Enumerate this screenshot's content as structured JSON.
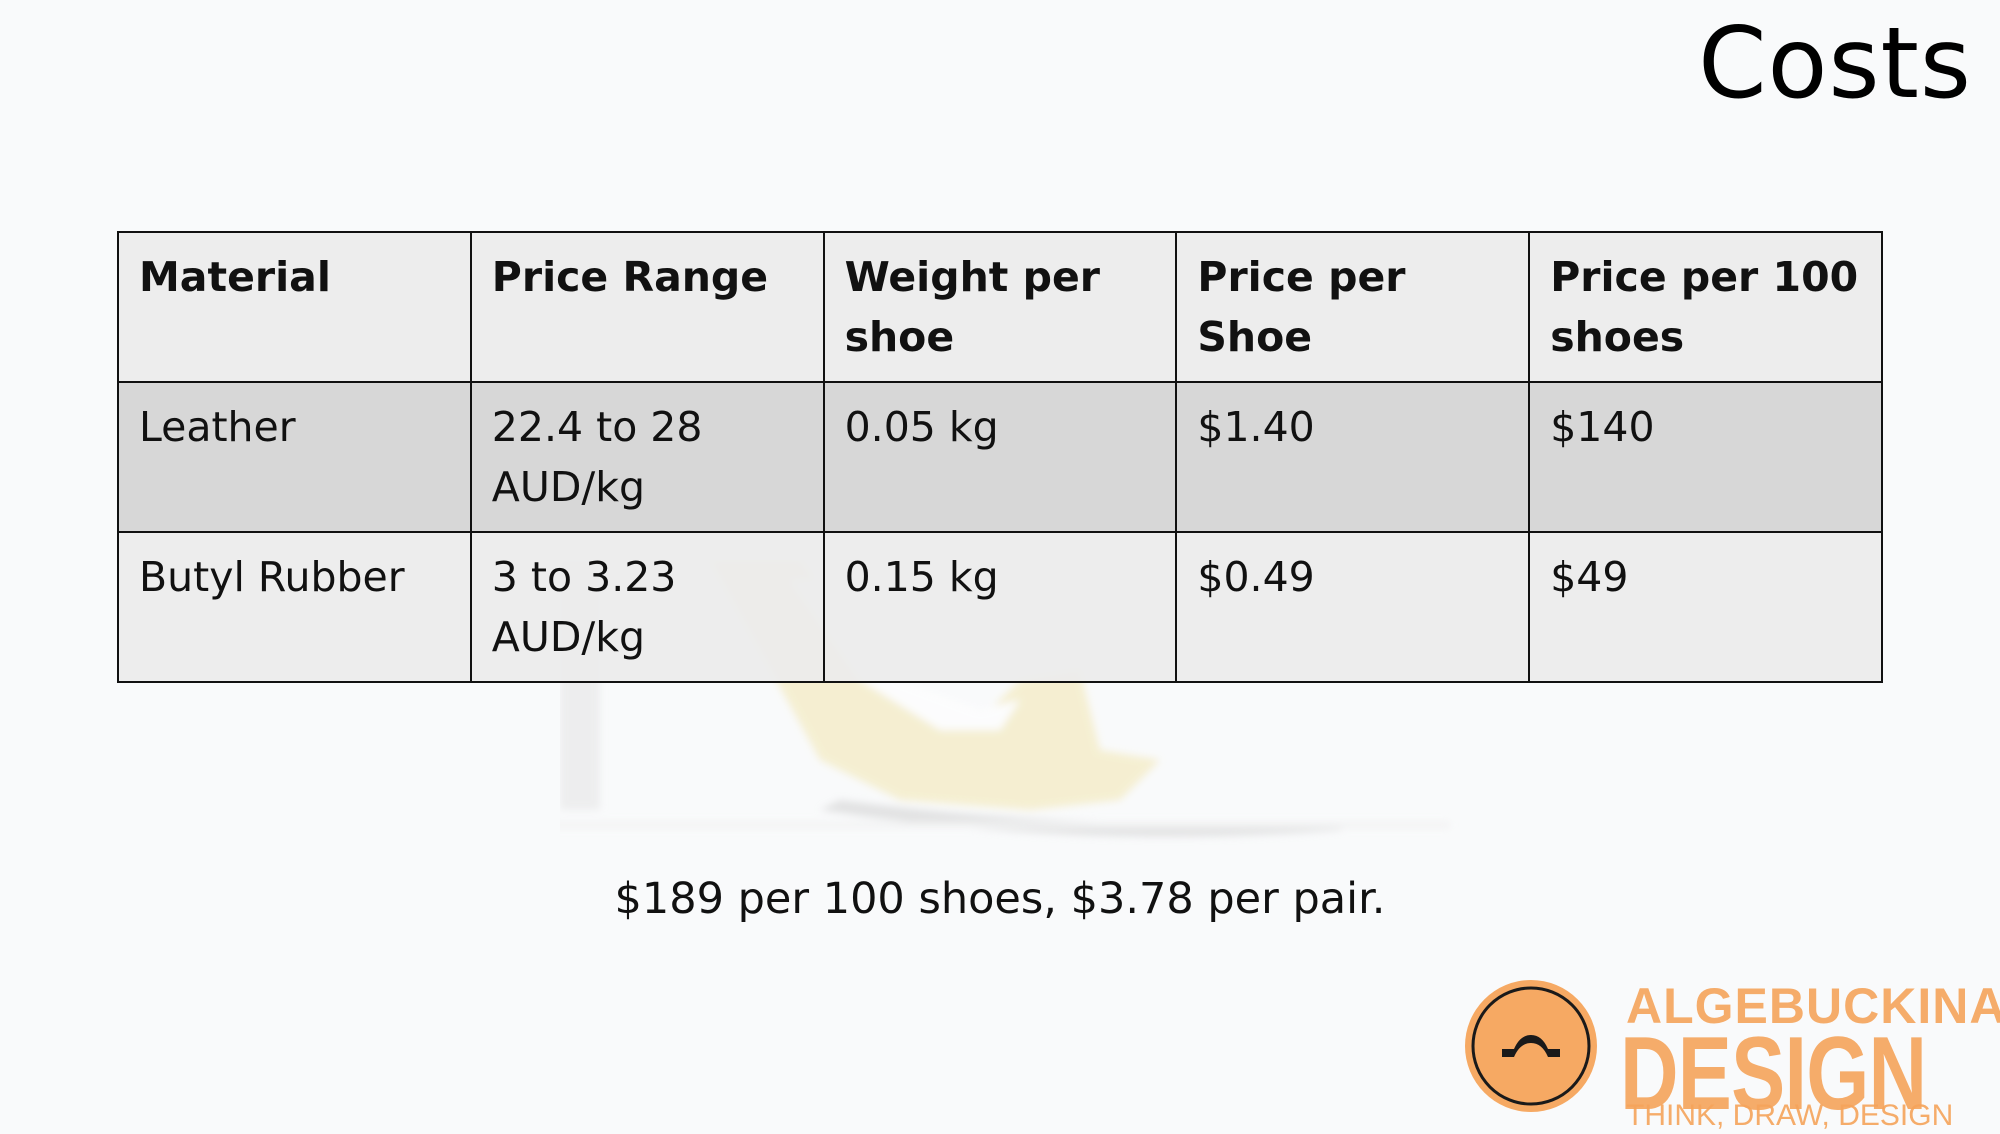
{
  "slide": {
    "title": "Costs",
    "summary": "$189 per 100 shoes, $3.78 per pair."
  },
  "table": {
    "headers": [
      "Material",
      "Price Range",
      "Weight per shoe",
      "Price per Shoe",
      "Price per 100 shoes"
    ],
    "rows": [
      [
        "Leather",
        "22.4 to 28 AUD/kg",
        "0.05 kg",
        "$1.40",
        "$140"
      ],
      [
        "Butyl Rubber",
        "3 to 3.23 AUD/kg",
        "0.15 kg",
        "$0.49",
        "$49"
      ]
    ]
  },
  "logo": {
    "name": "ALGEBUCKINA",
    "design": "DESIGN",
    "tagline": "THINK, DRAW, DESIGN",
    "color": "#f5a45b",
    "icon": "shoe-heel-icon"
  }
}
